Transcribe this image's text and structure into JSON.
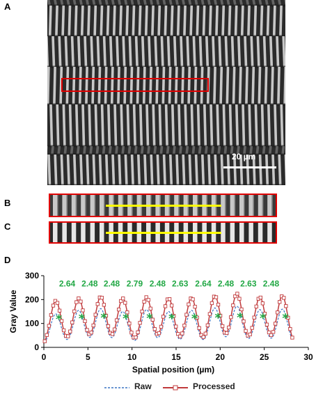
{
  "panels": {
    "a": "A",
    "b": "B",
    "c": "C",
    "d": "D"
  },
  "scale_bar": "20 µm",
  "colors": {
    "roi": "#e00000",
    "profile_line": "#ffff00",
    "raw": "#3a73c4",
    "processed": "#c0393b",
    "spacing_label": "#22a845"
  },
  "chart_data": {
    "type": "line",
    "xlabel": "Spatial position (µm)",
    "ylabel": "Gray Value",
    "xlim": [
      0,
      30
    ],
    "ylim": [
      0,
      300
    ],
    "xticks": [
      0,
      5,
      10,
      15,
      20,
      25,
      30
    ],
    "yticks": [
      0,
      100,
      200,
      300
    ],
    "peaks_x": [
      1.35,
      3.95,
      6.45,
      8.95,
      11.65,
      14.15,
      16.75,
      19.4,
      21.9,
      24.5,
      27.05
    ],
    "processed_peak_heights": [
      195,
      205,
      212,
      205,
      210,
      205,
      207,
      215,
      225,
      210,
      215
    ],
    "raw_peak_heights": [
      140,
      155,
      162,
      150,
      158,
      150,
      155,
      165,
      172,
      158,
      160
    ],
    "spacing_labels": [
      "2.64",
      "2.48",
      "2.48",
      "2.79",
      "2.48",
      "2.63",
      "2.64",
      "2.48",
      "2.63",
      "2.48"
    ],
    "legend": [
      "Raw",
      "Processed"
    ]
  }
}
